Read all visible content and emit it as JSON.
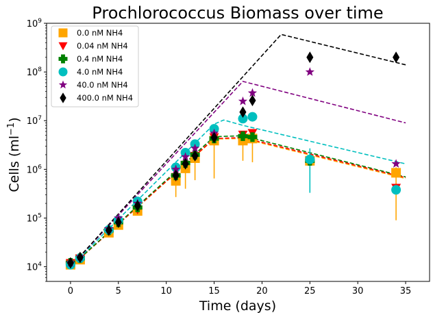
{
  "chart_data": {
    "type": "scatter",
    "title": "Prochlorococcus Biomass over time",
    "xlabel": "Time (days)",
    "ylabel": "Cells (ml",
    "ylabel_exponent": "−1",
    "ylabel_suffix": ")",
    "y_scale": "log",
    "xlim": [
      -2.5,
      37.5
    ],
    "ylim": [
      5000,
      1000000000
    ],
    "x_ticks": [
      0,
      5,
      10,
      15,
      20,
      25,
      30,
      35
    ],
    "y_ticks": [
      {
        "value": 10000,
        "base": "10",
        "exp": "4"
      },
      {
        "value": 100000,
        "base": "10",
        "exp": "5"
      },
      {
        "value": 1000000,
        "base": "10",
        "exp": "6"
      },
      {
        "value": 10000000,
        "base": "10",
        "exp": "7"
      },
      {
        "value": 100000000,
        "base": "10",
        "exp": "8"
      },
      {
        "value": 1000000000,
        "base": "10",
        "exp": "9"
      }
    ],
    "legend_position": "top-left",
    "grid": false,
    "series": [
      {
        "name": "0.0 nM NH4",
        "color": "#FFA500",
        "marker": "square",
        "points": [
          [
            0,
            11000
          ],
          [
            1,
            14000
          ],
          [
            4,
            50000
          ],
          [
            5,
            72000
          ],
          [
            7,
            140000
          ],
          [
            11,
            580000
          ],
          [
            12,
            1050000
          ],
          [
            13,
            1700000
          ],
          [
            15,
            3900000
          ],
          [
            18,
            3900000
          ],
          [
            19,
            4300000
          ],
          [
            25,
            1500000
          ],
          [
            34,
            850000
          ]
        ],
        "errors": [
          [
            12,
            400000,
            1900000
          ],
          [
            11,
            270000,
            1200000
          ],
          [
            13,
            600000,
            3100000
          ],
          [
            15,
            650000,
            5200000
          ],
          [
            18,
            1500000,
            5600000
          ],
          [
            19,
            1400000,
            5400000
          ],
          [
            34,
            90000,
            1100000
          ]
        ],
        "fit": [
          [
            0,
            10000
          ],
          [
            15,
            4200000
          ],
          [
            18,
            4300000
          ],
          [
            35,
            650000
          ]
        ]
      },
      {
        "name": "0.04 nM NH4",
        "color": "#FF0000",
        "marker": "triangle-down",
        "points": [
          [
            0,
            12000
          ],
          [
            1,
            15000
          ],
          [
            4,
            54000
          ],
          [
            5,
            80000
          ],
          [
            7,
            150000
          ],
          [
            11,
            700000
          ],
          [
            12,
            1250000
          ],
          [
            13,
            1900000
          ],
          [
            15,
            4600000
          ],
          [
            18,
            5200000
          ],
          [
            19,
            5600000
          ],
          [
            25,
            1500000
          ],
          [
            34,
            420000
          ]
        ],
        "errors": [],
        "fit": [
          [
            0,
            10000
          ],
          [
            15,
            4300000
          ],
          [
            18,
            4500000
          ],
          [
            35,
            680000
          ]
        ]
      },
      {
        "name": "0.4 nM NH4",
        "color": "#008000",
        "marker": "plus",
        "points": [
          [
            0,
            12000
          ],
          [
            1,
            15000
          ],
          [
            4,
            56000
          ],
          [
            5,
            82000
          ],
          [
            7,
            165000
          ],
          [
            11,
            750000
          ],
          [
            12,
            1350000
          ],
          [
            13,
            2000000
          ],
          [
            15,
            4300000
          ],
          [
            18,
            4800000
          ],
          [
            19,
            4600000
          ],
          [
            25,
            1500000
          ]
        ],
        "errors": [],
        "fit": [
          [
            0,
            10000
          ],
          [
            15,
            4700000
          ],
          [
            18,
            4900000
          ],
          [
            35,
            700000
          ]
        ]
      },
      {
        "name": "4.0 nM NH4",
        "color": "#00BFBF",
        "marker": "circle",
        "points": [
          [
            0,
            11000
          ],
          [
            1,
            15000
          ],
          [
            4,
            57000
          ],
          [
            5,
            90000
          ],
          [
            7,
            220000
          ],
          [
            11,
            1100000
          ],
          [
            12,
            2200000
          ],
          [
            13,
            3300000
          ],
          [
            15,
            6800000
          ],
          [
            18,
            11000000
          ],
          [
            19,
            12000000
          ],
          [
            25,
            1600000
          ],
          [
            34,
            380000
          ]
        ],
        "errors": [
          [
            25,
            330000,
            2700000
          ]
        ],
        "fit": [
          [
            0,
            10000
          ],
          [
            15,
            8500000
          ],
          [
            16,
            10300000
          ],
          [
            18,
            8000000
          ],
          [
            35,
            1300000
          ]
        ]
      },
      {
        "name": "40.0 nM NH4",
        "color": "#800080",
        "marker": "star",
        "points": [
          [
            0,
            12000
          ],
          [
            1,
            16000
          ],
          [
            4,
            60000
          ],
          [
            5,
            100000
          ],
          [
            7,
            200000
          ],
          [
            11,
            1000000
          ],
          [
            12,
            1800000
          ],
          [
            13,
            2700000
          ],
          [
            15,
            5500000
          ],
          [
            18,
            25000000
          ],
          [
            19,
            37000000
          ],
          [
            25,
            100000000
          ],
          [
            34,
            1300000
          ]
        ],
        "errors": [],
        "fit": [
          [
            0,
            10000
          ],
          [
            18,
            64000000
          ],
          [
            35,
            9000000
          ]
        ]
      },
      {
        "name": "400.0 nM NH4",
        "color": "#000000",
        "marker": "diamond",
        "points": [
          [
            0,
            12000
          ],
          [
            1,
            15500
          ],
          [
            4,
            56000
          ],
          [
            5,
            82000
          ],
          [
            7,
            180000
          ],
          [
            11,
            750000
          ],
          [
            12,
            1300000
          ],
          [
            13,
            1900000
          ],
          [
            15,
            4500000
          ],
          [
            18,
            15000000
          ],
          [
            19,
            26000000
          ],
          [
            25,
            200000000
          ],
          [
            34,
            200000000
          ]
        ],
        "errors": [],
        "fit": [
          [
            0,
            10000
          ],
          [
            22,
            590000000
          ],
          [
            35,
            140000000
          ]
        ]
      }
    ]
  }
}
